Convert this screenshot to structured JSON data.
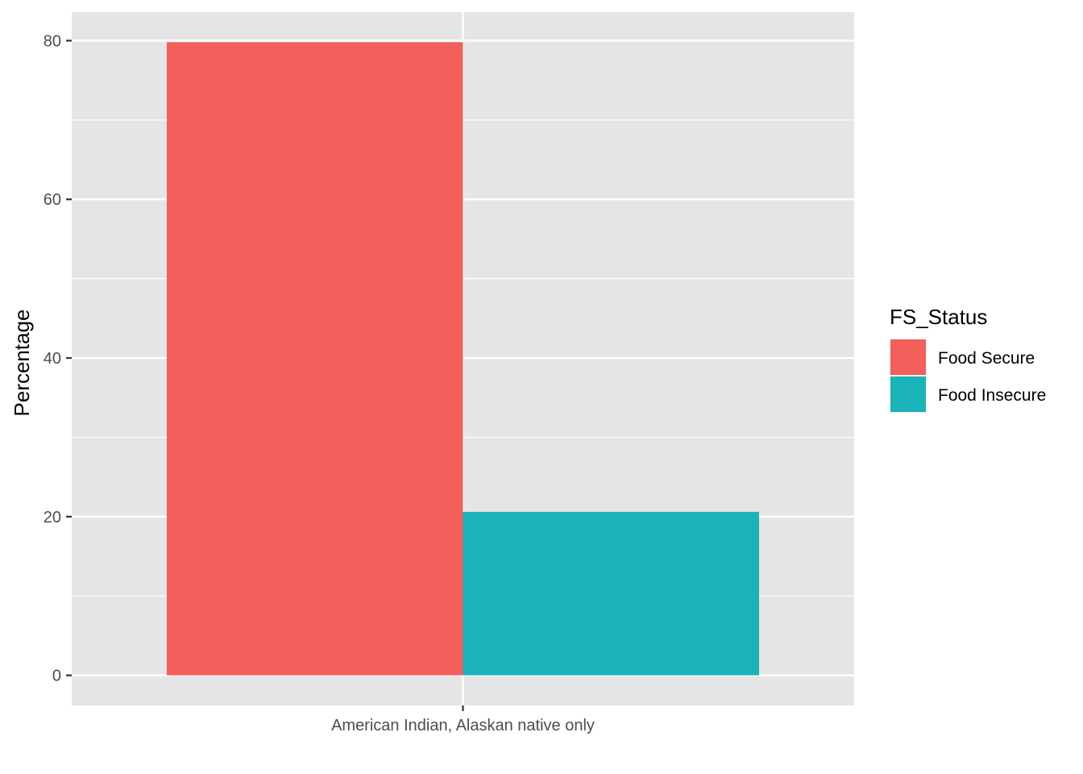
{
  "chart_data": {
    "type": "bar",
    "categories": [
      "American Indian, Alaskan native only"
    ],
    "series": [
      {
        "name": "Food Secure",
        "values": [
          79.8
        ],
        "color": "#F35F5B"
      },
      {
        "name": "Food Insecure",
        "values": [
          20.6
        ],
        "color": "#19B3B8"
      }
    ],
    "xlabel": "",
    "ylabel": "Percentage",
    "ylim": [
      -3.8,
      83.6
    ],
    "yticks": [
      0,
      20,
      40,
      60,
      80
    ],
    "ytick_labels": [
      "0",
      "20",
      "40",
      "60",
      "80"
    ],
    "grid": true,
    "legend": {
      "title": "FS_Status",
      "position": "right"
    },
    "panel_color": "#E5E5E5",
    "grid_color": "#FFFFFF"
  }
}
